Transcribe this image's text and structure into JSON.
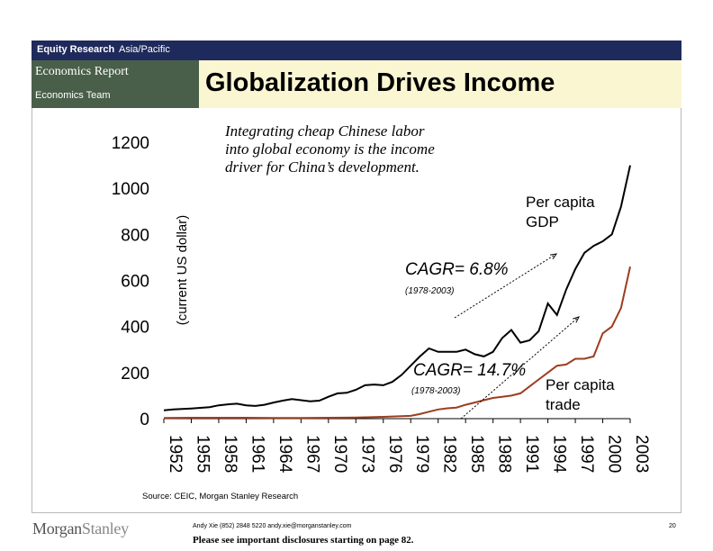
{
  "header": {
    "division": "Equity Research",
    "region": "Asia/Pacific",
    "report_type": "Economics Report",
    "team": "Economics Team",
    "title": "Globalization Drives Income"
  },
  "annotation": "Integrating cheap Chinese labor into global economy is the income driver for China’s development.",
  "chart_data": {
    "type": "line",
    "ylabel": "(current US dollar)",
    "ylim": [
      0,
      1200
    ],
    "yticks": [
      0,
      200,
      400,
      600,
      800,
      1000,
      1200
    ],
    "xlim": [
      1952,
      2003
    ],
    "xticks": [
      "1952",
      "1955",
      "1958",
      "1961",
      "1964",
      "1967",
      "1970",
      "1973",
      "1976",
      "1979",
      "1982",
      "1985",
      "1988",
      "1991",
      "1994",
      "1997",
      "2000",
      "2003"
    ],
    "series": [
      {
        "name": "Per capita GDP",
        "label_lines": [
          "Per capita",
          "GDP"
        ],
        "color": "#000000",
        "x": [
          1952,
          1953,
          1954,
          1955,
          1956,
          1957,
          1958,
          1959,
          1960,
          1961,
          1962,
          1963,
          1964,
          1965,
          1966,
          1967,
          1968,
          1969,
          1970,
          1971,
          1972,
          1973,
          1974,
          1975,
          1976,
          1977,
          1978,
          1979,
          1980,
          1981,
          1982,
          1983,
          1984,
          1985,
          1986,
          1987,
          1988,
          1989,
          1990,
          1991,
          1992,
          1993,
          1994,
          1995,
          1996,
          1997,
          1998,
          1999,
          2000,
          2001,
          2002,
          2003
        ],
        "values": [
          36,
          40,
          42,
          44,
          47,
          50,
          58,
          62,
          65,
          58,
          55,
          60,
          70,
          78,
          85,
          80,
          75,
          78,
          95,
          110,
          112,
          125,
          145,
          148,
          145,
          160,
          190,
          230,
          270,
          305,
          290,
          290,
          290,
          300,
          280,
          270,
          290,
          350,
          385,
          330,
          340,
          380,
          500,
          450,
          560,
          650,
          720,
          750,
          770,
          800,
          920,
          1100
        ]
      },
      {
        "name": "Per capita trade",
        "label_lines": [
          "Per capita",
          "trade"
        ],
        "color": "#9c3d1e",
        "x": [
          1952,
          1955,
          1958,
          1961,
          1964,
          1967,
          1970,
          1973,
          1976,
          1979,
          1980,
          1981,
          1982,
          1983,
          1984,
          1985,
          1986,
          1987,
          1988,
          1989,
          1990,
          1991,
          1992,
          1993,
          1994,
          1995,
          1996,
          1997,
          1998,
          1999,
          2000,
          2001,
          2002,
          2003
        ],
        "values": [
          3,
          4,
          4,
          4,
          3,
          3,
          4,
          5,
          8,
          12,
          20,
          30,
          40,
          45,
          48,
          60,
          70,
          80,
          90,
          95,
          100,
          110,
          140,
          170,
          200,
          230,
          235,
          260,
          260,
          270,
          370,
          400,
          480,
          660
        ]
      }
    ],
    "annotations": [
      {
        "label": "CAGR= 6.8%",
        "period": "(1978-2003)"
      },
      {
        "label": "CAGR= 14.7%",
        "period": "(1978-2003)"
      }
    ]
  },
  "footer": {
    "source": "Source: CEIC, Morgan Stanley Research",
    "logo_part1": "Morgan",
    "logo_part2": "Stanley",
    "contact": "Andy Xie (852) 2848 5220  andy.xie@morganstanley.com",
    "disclosure": "Please see important disclosures starting on page 82.",
    "page_number": "20"
  }
}
